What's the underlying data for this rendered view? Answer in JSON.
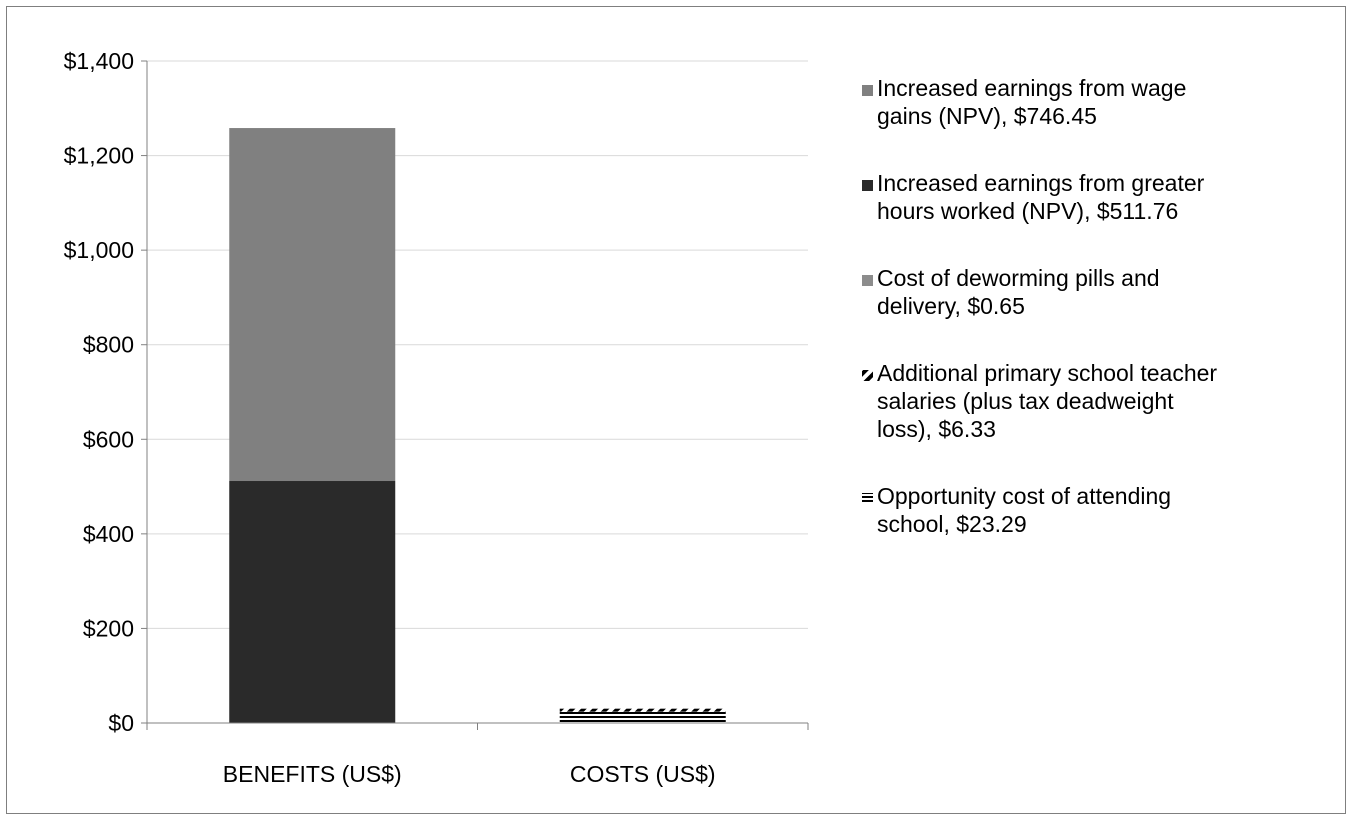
{
  "chart_data": {
    "type": "bar",
    "stacked": true,
    "categories": [
      "BENEFITS (US$)",
      "COSTS (US$)"
    ],
    "ylim": [
      0,
      1400
    ],
    "y_ticks": [
      0,
      200,
      400,
      600,
      800,
      1000,
      1200,
      1400
    ],
    "y_tick_labels": [
      "$0",
      "$200",
      "$400",
      "$600",
      "$800",
      "$1,000",
      "$1,200",
      "$1,400"
    ],
    "grid": true,
    "legend_position": "right",
    "series": [
      {
        "name": "Increased earnings from greater hours worked (NPV),  $511.76",
        "values": [
          511.76,
          0
        ],
        "color": "#2a2a2a",
        "pattern": "solid",
        "legend_lines": [
          "Increased earnings from greater",
          "hours worked (NPV),  $511.76"
        ]
      },
      {
        "name": "Increased earnings from wage gains (NPV), $746.45",
        "values": [
          746.45,
          0
        ],
        "color": "#808080",
        "pattern": "solid",
        "legend_lines": [
          "Increased earnings from wage",
          "gains (NPV), $746.45"
        ]
      },
      {
        "name": "Cost of deworming pills and delivery, $0.65",
        "values": [
          0,
          0.65
        ],
        "color": "#8c8c8c",
        "pattern": "solid",
        "legend_lines": [
          "Cost of deworming pills and",
          "delivery, $0.65"
        ]
      },
      {
        "name": "Opportunity cost of attending school,  $23.29",
        "values": [
          0,
          23.29
        ],
        "color": "#000000",
        "pattern": "horizontal",
        "legend_lines": [
          "Opportunity cost of attending",
          "school,  $23.29"
        ]
      },
      {
        "name": "Additional primary school teacher salaries (plus tax deadweight loss), $6.33",
        "values": [
          0,
          6.33
        ],
        "color": "#000000",
        "pattern": "diagonal",
        "legend_lines": [
          "Additional primary school teacher",
          "salaries (plus tax deadweight",
          "loss), $6.33"
        ]
      }
    ],
    "legend_order": [
      1,
      0,
      2,
      4,
      3
    ]
  }
}
